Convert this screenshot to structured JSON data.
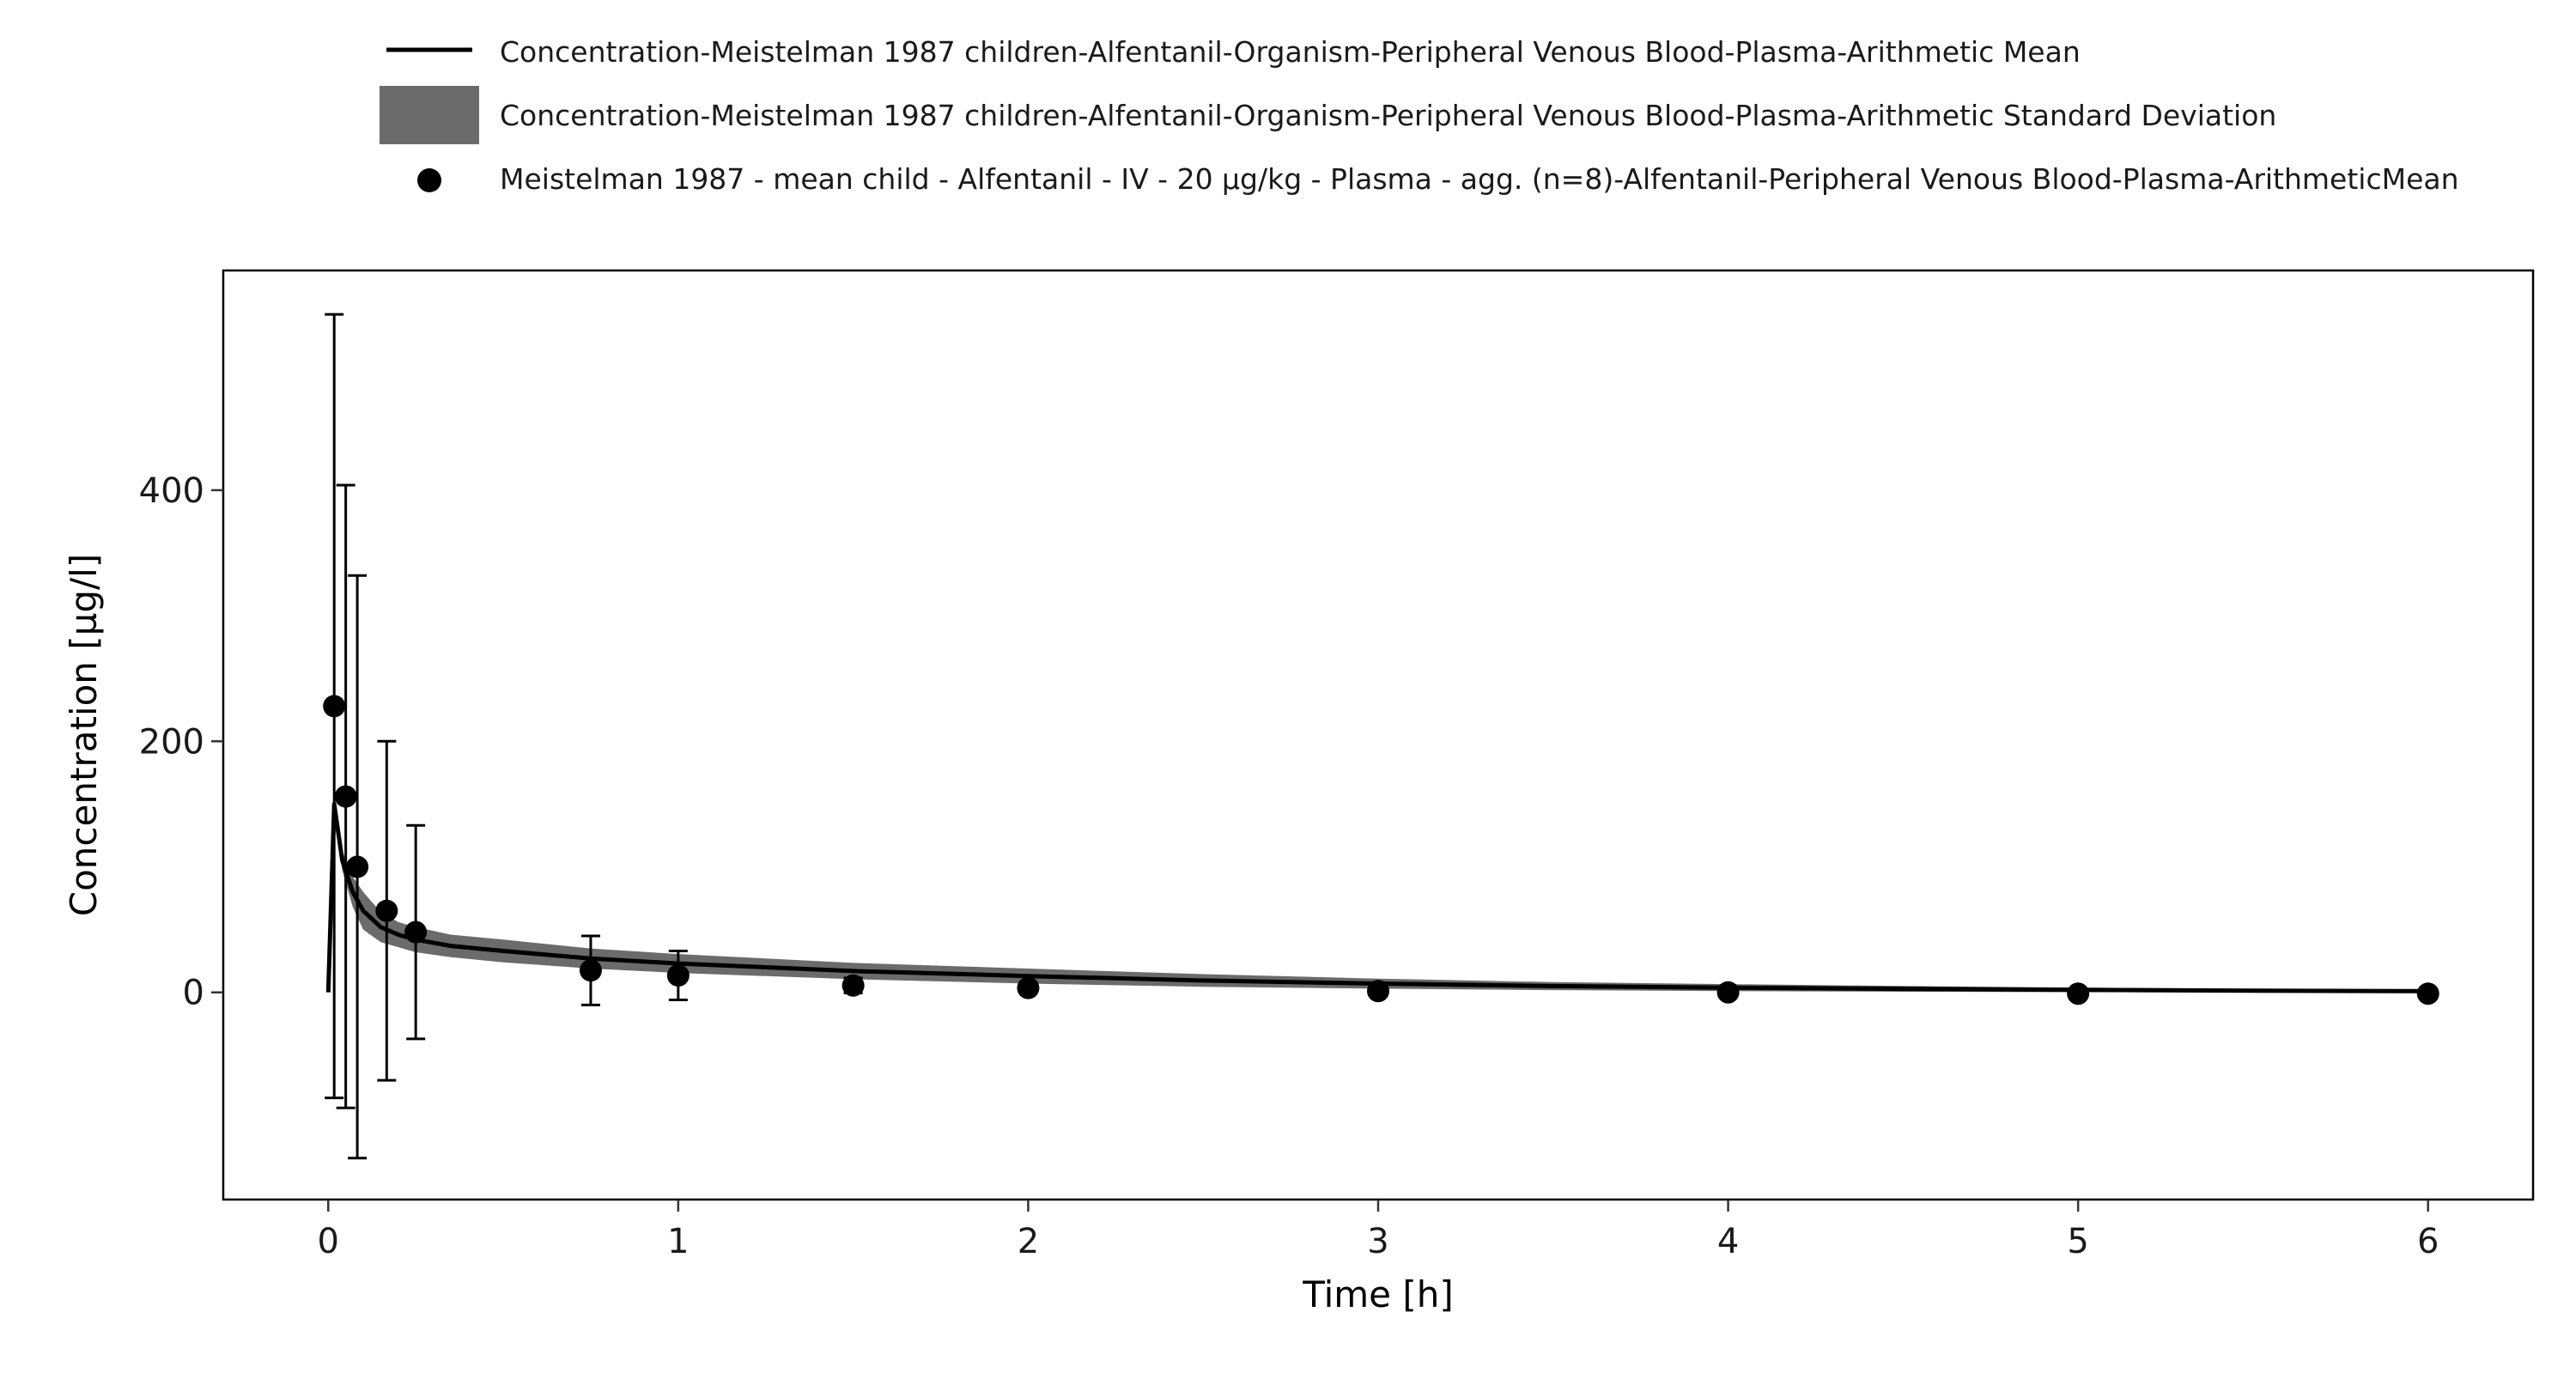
{
  "chart_data": {
    "type": "line",
    "xlabel": "Time [h]",
    "ylabel": "Concentration [µg/l]",
    "xlim": [
      -0.3,
      6.3
    ],
    "ylim": [
      -165,
      575
    ],
    "x_ticks": [
      0,
      1,
      2,
      3,
      4,
      5,
      6
    ],
    "y_ticks": [
      0,
      200,
      400
    ],
    "grid": false,
    "legend_position": "top",
    "colors": {
      "mean_line": "#000000",
      "sd_band": "#6b6b6b",
      "observed": "#000000"
    },
    "series": [
      {
        "name": "Concentration-Meistelman 1987 children-Alfentanil-Organism-Peripheral Venous Blood-Plasma-Arithmetic Mean",
        "kind": "line",
        "x": [
          0,
          0.017,
          0.04,
          0.07,
          0.1,
          0.15,
          0.2,
          0.25,
          0.35,
          0.5,
          0.75,
          1.0,
          1.5,
          2.0,
          2.5,
          3.0,
          3.5,
          4.0,
          4.5,
          5.0,
          5.5,
          6.0
        ],
        "y": [
          0,
          150,
          105,
          80,
          65,
          52,
          46,
          42,
          37,
          33,
          27,
          23,
          17,
          13,
          9.5,
          7,
          5,
          3.8,
          2.8,
          2,
          1.4,
          1
        ]
      },
      {
        "name": "Concentration-Meistelman 1987 children-Alfentanil-Organism-Peripheral Venous Blood-Plasma-Arithmetic Standard Deviation",
        "kind": "band",
        "x": [
          0.017,
          0.04,
          0.07,
          0.1,
          0.15,
          0.2,
          0.25,
          0.35,
          0.5,
          0.75,
          1.0,
          1.5,
          2.0,
          2.5,
          3.0,
          3.5,
          4.0,
          4.5,
          5.0,
          5.5,
          6.0
        ],
        "lower": [
          145,
          97,
          68,
          50,
          40,
          36,
          32,
          28,
          24,
          19,
          15.5,
          10.5,
          7,
          4.5,
          3,
          1.8,
          1,
          0.5,
          0.2,
          0,
          0
        ],
        "upper": [
          155,
          113,
          92,
          80,
          64,
          56,
          52,
          46,
          42,
          35,
          30.5,
          23.5,
          19,
          14.5,
          11,
          8.2,
          6.6,
          5.1,
          3.8,
          2.8,
          2
        ]
      },
      {
        "name": "Meistelman 1987 - mean child - Alfentanil - IV - 20 µg/kg - Plasma - agg. (n=8)-Alfentanil-Peripheral Venous Blood-Plasma-ArithmeticMean",
        "kind": "points",
        "x": [
          0.017,
          0.05,
          0.083,
          0.167,
          0.25,
          0.75,
          1.0,
          1.5,
          2.0,
          3.0,
          4.0,
          5.0,
          6.0
        ],
        "y": [
          228,
          156,
          100,
          65,
          48,
          17.5,
          13.5,
          5.5,
          3.5,
          1,
          0,
          -1,
          -1
        ],
        "error": [
          312,
          248,
          232,
          135,
          85,
          27.5,
          19.5,
          6,
          2,
          0,
          0,
          0,
          0
        ]
      }
    ]
  }
}
